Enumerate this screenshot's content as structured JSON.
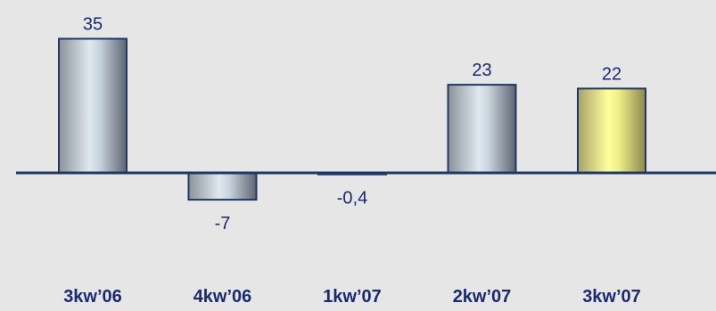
{
  "colors": {
    "background": "#e6e6e6",
    "text": "#1a2a6c",
    "axis": "#1f3864",
    "bar_outline": "#1f3864",
    "highlight_bar": "#ffff99"
  },
  "chart_data": {
    "type": "bar",
    "categories": [
      "3kw’06",
      "4kw’06",
      "1kw’07",
      "2kw’07",
      "3kw’07"
    ],
    "values": [
      35,
      -7,
      -0.4,
      23,
      22
    ],
    "value_labels": [
      "35",
      "-7",
      "-0,4",
      "23",
      "22"
    ],
    "highlighted_category": "3kw’07",
    "title": "",
    "xlabel": "",
    "ylabel": "",
    "grid": false,
    "legend": "none"
  }
}
